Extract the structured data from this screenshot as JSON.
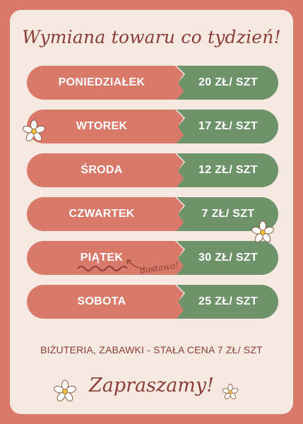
{
  "title": "Wymiana towaru co tydzień!",
  "schedule": [
    {
      "day": "PONIEDZIAŁEK",
      "price": "20 ZŁ/ SZT"
    },
    {
      "day": "WTOREK",
      "price": "17 ZŁ/ SZT"
    },
    {
      "day": "ŚRODA",
      "price": "12 ZŁ/ SZT"
    },
    {
      "day": "CZWARTEK",
      "price": "7 ZŁ/ SZT"
    },
    {
      "day": "PIĄTEK",
      "price": "30 ZŁ/ SZT"
    },
    {
      "day": "SOBOTA",
      "price": "25 ZŁ/ SZT"
    }
  ],
  "delivery_note": "dostawa!",
  "footer": "BIŻUTERIA, ZABAWKI - STAŁA CENA 7 ZŁ/ SZT",
  "closing": "Zapraszamy!",
  "colors": {
    "background": "#d8796a",
    "card": "#f6e9e1",
    "day_pill": "#d8796a",
    "price_pill": "#6e936b",
    "text_dark": "#8a3d36"
  }
}
